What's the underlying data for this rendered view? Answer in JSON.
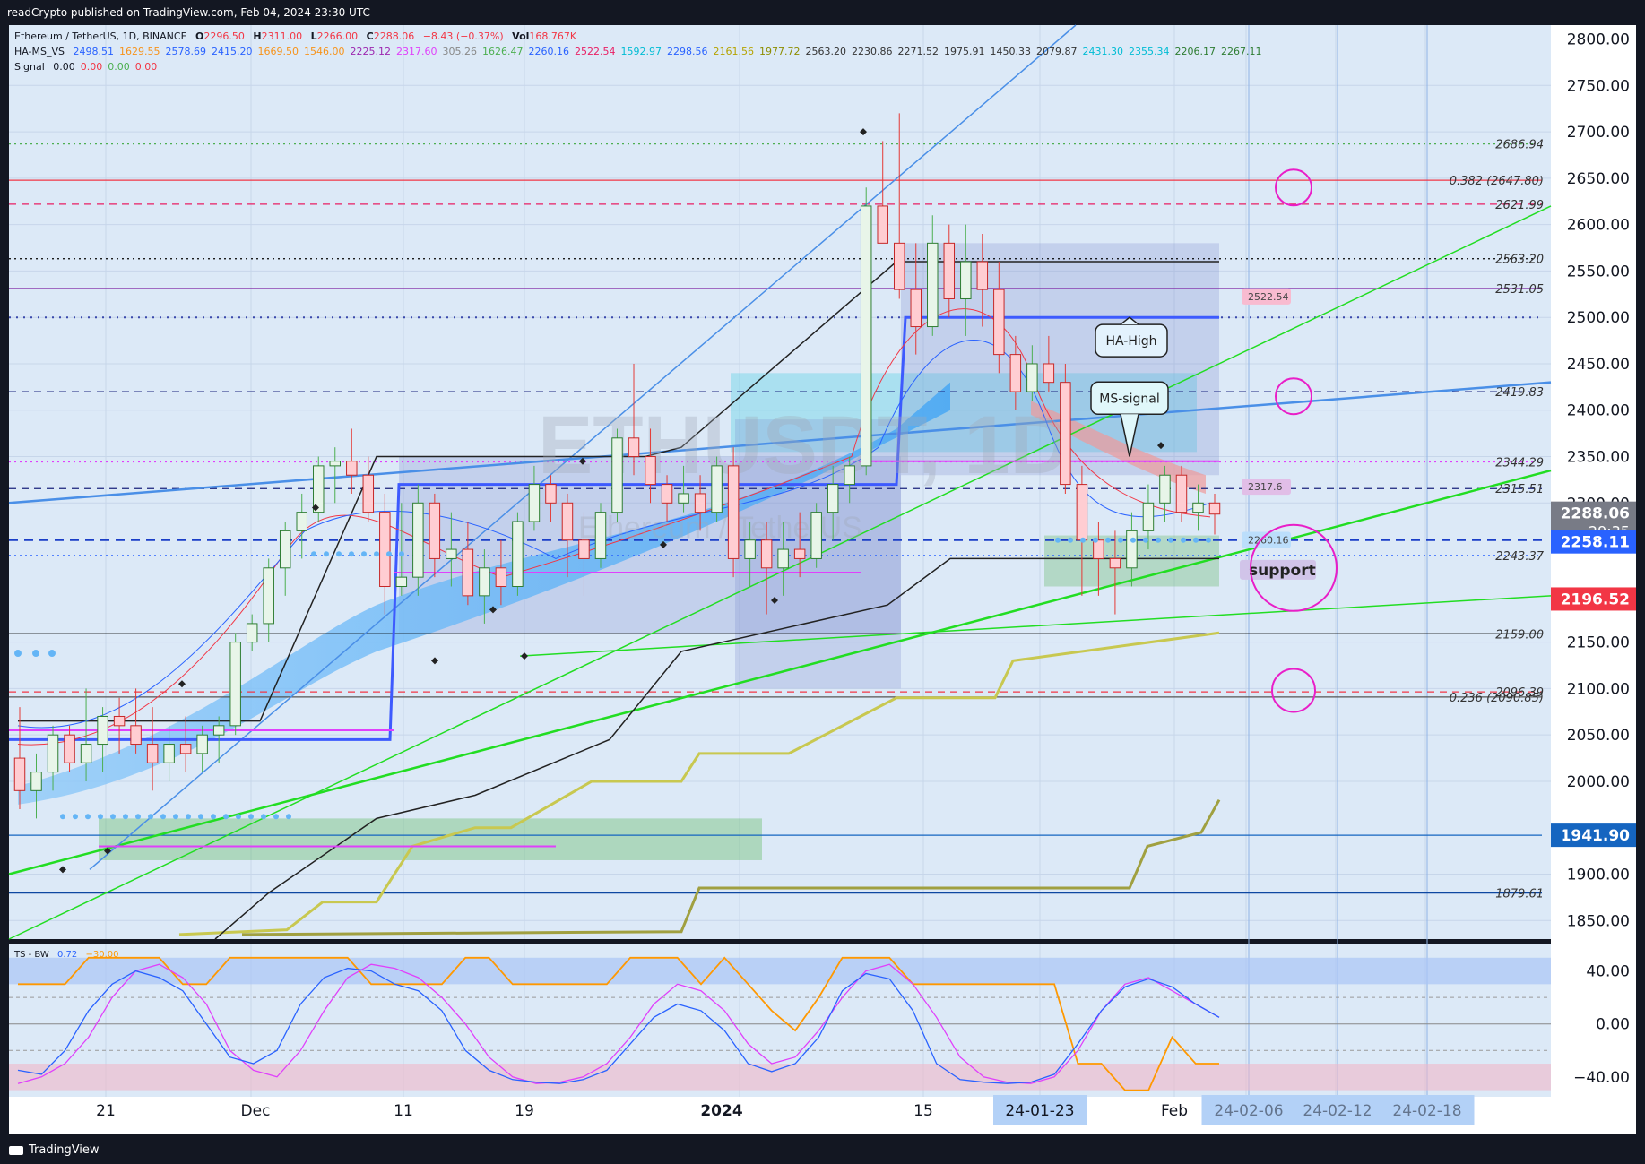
{
  "header": {
    "published": "readCrypto published on TradingView.com, Feb 04, 2024 23:30 UTC"
  },
  "footer": {
    "brand": "TradingView"
  },
  "legend": {
    "symbol_line": {
      "title": "Ethereum / TetherUS, 1D, BINANCE",
      "o_label": "O",
      "o": "2296.50",
      "h_label": "H",
      "h": "2311.00",
      "l_label": "L",
      "l": "2266.00",
      "c_label": "C",
      "c": "2288.06",
      "change": "−8.43 (−0.37%)",
      "vol_label": "Vol",
      "vol": "168.767K"
    },
    "ha_ms": {
      "name": "HA-MS_VS",
      "values": [
        {
          "v": "2498.51",
          "c": "#2962ff"
        },
        {
          "v": "1629.55",
          "c": "#f7931a"
        },
        {
          "v": "2578.69",
          "c": "#2962ff"
        },
        {
          "v": "2415.20",
          "c": "#2962ff"
        },
        {
          "v": "1669.50",
          "c": "#f7931a"
        },
        {
          "v": "1546.00",
          "c": "#f7931a"
        },
        {
          "v": "2225.12",
          "c": "#9c27b0"
        },
        {
          "v": "2317.60",
          "c": "#e040fb"
        },
        {
          "v": "305.26",
          "c": "#888888"
        },
        {
          "v": "1626.47",
          "c": "#4caf50"
        },
        {
          "v": "2260.16",
          "c": "#2962ff"
        },
        {
          "v": "2522.54",
          "c": "#e91e63"
        },
        {
          "v": "1592.97",
          "c": "#00bcd4"
        },
        {
          "v": "2298.56",
          "c": "#2962ff"
        },
        {
          "v": "2161.56",
          "c": "#b5a300"
        },
        {
          "v": "1977.72",
          "c": "#8d8d00"
        },
        {
          "v": "2563.20",
          "c": "#333333"
        },
        {
          "v": "2230.86",
          "c": "#333333"
        },
        {
          "v": "2271.52",
          "c": "#333333"
        },
        {
          "v": "1975.91",
          "c": "#333333"
        },
        {
          "v": "1450.33",
          "c": "#333333"
        },
        {
          "v": "2079.87",
          "c": "#333333"
        },
        {
          "v": "2431.30",
          "c": "#00bcd4"
        },
        {
          "v": "2355.34",
          "c": "#00bcd4"
        },
        {
          "v": "2206.17",
          "c": "#2e7d32"
        },
        {
          "v": "2267.11",
          "c": "#2e7d32"
        }
      ]
    },
    "signal": {
      "name": "Signal",
      "values": [
        "0.00",
        "0.00",
        "0.00",
        "0.00"
      ]
    },
    "tsbw": {
      "name": "TS - BW",
      "v1": "0.72",
      "v2": "−30.00"
    }
  },
  "watermark": {
    "symbol": "ETHUSDT, 1D",
    "name": "Ethereum / TetherUS"
  },
  "price_axis": {
    "min": 1830,
    "max": 2815,
    "ticks": [
      "2800.00",
      "2750.00",
      "2700.00",
      "2650.00",
      "2600.00",
      "2550.00",
      "2500.00",
      "2450.00",
      "2400.00",
      "2350.00",
      "2300.00",
      "2150.00",
      "2100.00",
      "2050.00",
      "2000.00",
      "1900.00",
      "1850.00"
    ],
    "tick_values": [
      2800,
      2750,
      2700,
      2650,
      2600,
      2550,
      2500,
      2450,
      2400,
      2350,
      2300,
      2150,
      2100,
      2050,
      2000,
      1900,
      1850
    ],
    "price_boxes": [
      {
        "label": "2288.06",
        "sub": "29:35",
        "value": 2288.06,
        "bg": "#787b86",
        "fg": "#ffffff"
      },
      {
        "label": "2258.11",
        "value": 2258.11,
        "bg": "#2962ff",
        "fg": "#ffffff"
      },
      {
        "label": "2196.52",
        "value": 2196.52,
        "bg": "#f23645",
        "fg": "#ffffff"
      },
      {
        "label": "1941.90",
        "value": 1941.9,
        "bg": "#1565c0",
        "fg": "#ffffff"
      }
    ]
  },
  "levels": [
    {
      "label": "2686.94",
      "value": 2686.94,
      "color": "#4caf50",
      "style": "dotted"
    },
    {
      "label": "0.382 (2647.80)",
      "value": 2647.8,
      "color": "#f23645",
      "style": "solid"
    },
    {
      "label": "2621.99",
      "value": 2621.99,
      "color": "#e91e63",
      "style": "dashed"
    },
    {
      "label": "2563.20",
      "value": 2563.2,
      "color": "#000000",
      "style": "dotted"
    },
    {
      "label": "2531.05",
      "value": 2531.05,
      "color": "#7b1fa2",
      "style": "solid"
    },
    {
      "label": "2419.83",
      "value": 2419.83,
      "color": "#1a237e",
      "style": "dashed"
    },
    {
      "label": "2344.29",
      "value": 2344.29,
      "color": "#e040fb",
      "style": "dotted"
    },
    {
      "label": "2315.51",
      "value": 2315.51,
      "color": "#1a237e",
      "style": "dashed"
    },
    {
      "label": "2243.37",
      "value": 2243.37,
      "color": "#2962ff",
      "style": "dotted"
    },
    {
      "label": "2159.00",
      "value": 2159.0,
      "color": "#000000",
      "style": "solid"
    },
    {
      "label": "2096.39",
      "value": 2096.39,
      "color": "#f23645",
      "style": "dashed"
    },
    {
      "label": "0.236 (2090.85)",
      "value": 2090.85,
      "color": "#555555",
      "style": "solid"
    },
    {
      "label": "1879.61",
      "value": 1879.61,
      "color": "#0d47a1",
      "style": "solid"
    }
  ],
  "small_tags": [
    {
      "label": "2522.54",
      "value": 2522.54,
      "bg": "#f8bbd0"
    },
    {
      "label": "2317.6",
      "value": 2317.6,
      "bg": "#e1bee7"
    },
    {
      "label": "2260.16",
      "value": 2260.16,
      "bg": "#bbdefb"
    }
  ],
  "annotations": [
    {
      "label": "HA-High"
    },
    {
      "label": "MS-signal"
    },
    {
      "label": "support"
    }
  ],
  "time_axis": {
    "labels": [
      "21",
      "Dec",
      "11",
      "19",
      "2024",
      "15",
      "24-01-23",
      "Feb",
      "24-02-06",
      "24-02-12",
      "24-02-18"
    ],
    "highlighted": [
      "24-01-23",
      "24-02-06",
      "24-02-12",
      "24-02-18"
    ]
  },
  "oscillator": {
    "min": -55,
    "max": 60,
    "ticks": [
      "40.00",
      "0.00",
      "−40.00"
    ],
    "tick_values": [
      40,
      0,
      -40
    ]
  },
  "candles": [
    [
      2025,
      2080,
      1970,
      1990
    ],
    [
      1990,
      2030,
      1960,
      2010
    ],
    [
      2010,
      2060,
      1990,
      2050
    ],
    [
      2050,
      2060,
      2010,
      2020
    ],
    [
      2020,
      2100,
      2000,
      2040
    ],
    [
      2040,
      2080,
      2010,
      2070
    ],
    [
      2070,
      2090,
      2030,
      2060
    ],
    [
      2060,
      2100,
      2030,
      2040
    ],
    [
      2040,
      2080,
      1990,
      2020
    ],
    [
      2020,
      2060,
      2000,
      2040
    ],
    [
      2040,
      2070,
      2010,
      2030
    ],
    [
      2030,
      2060,
      2010,
      2050
    ],
    [
      2050,
      2070,
      2020,
      2060
    ],
    [
      2060,
      2160,
      2050,
      2150
    ],
    [
      2150,
      2180,
      2140,
      2170
    ],
    [
      2170,
      2240,
      2150,
      2230
    ],
    [
      2230,
      2280,
      2200,
      2270
    ],
    [
      2270,
      2310,
      2240,
      2290
    ],
    [
      2290,
      2350,
      2280,
      2340
    ],
    [
      2340,
      2360,
      2300,
      2345
    ],
    [
      2345,
      2380,
      2310,
      2330
    ],
    [
      2330,
      2350,
      2280,
      2290
    ],
    [
      2290,
      2310,
      2180,
      2210
    ],
    [
      2210,
      2300,
      2200,
      2220
    ],
    [
      2220,
      2320,
      2200,
      2300
    ],
    [
      2300,
      2310,
      2220,
      2240
    ],
    [
      2240,
      2290,
      2210,
      2250
    ],
    [
      2250,
      2280,
      2190,
      2200
    ],
    [
      2200,
      2250,
      2170,
      2230
    ],
    [
      2230,
      2260,
      2190,
      2210
    ],
    [
      2210,
      2290,
      2200,
      2280
    ],
    [
      2280,
      2340,
      2270,
      2320
    ],
    [
      2320,
      2330,
      2280,
      2300
    ],
    [
      2300,
      2310,
      2220,
      2260
    ],
    [
      2260,
      2290,
      2200,
      2240
    ],
    [
      2240,
      2300,
      2230,
      2290
    ],
    [
      2290,
      2380,
      2280,
      2370
    ],
    [
      2370,
      2450,
      2330,
      2350
    ],
    [
      2350,
      2380,
      2300,
      2320
    ],
    [
      2320,
      2330,
      2280,
      2300
    ],
    [
      2300,
      2340,
      2290,
      2310
    ],
    [
      2310,
      2330,
      2270,
      2290
    ],
    [
      2290,
      2350,
      2280,
      2340
    ],
    [
      2340,
      2360,
      2220,
      2240
    ],
    [
      2240,
      2280,
      2210,
      2260
    ],
    [
      2260,
      2280,
      2180,
      2230
    ],
    [
      2230,
      2280,
      2200,
      2250
    ],
    [
      2250,
      2290,
      2220,
      2240
    ],
    [
      2240,
      2300,
      2230,
      2290
    ],
    [
      2290,
      2340,
      2260,
      2320
    ],
    [
      2320,
      2350,
      2300,
      2340
    ],
    [
      2340,
      2640,
      2330,
      2620
    ],
    [
      2620,
      2690,
      2580,
      2580
    ],
    [
      2580,
      2720,
      2520,
      2530
    ],
    [
      2530,
      2580,
      2460,
      2490
    ],
    [
      2490,
      2610,
      2480,
      2580
    ],
    [
      2580,
      2600,
      2500,
      2520
    ],
    [
      2520,
      2600,
      2480,
      2560
    ],
    [
      2560,
      2590,
      2490,
      2530
    ],
    [
      2530,
      2560,
      2440,
      2460
    ],
    [
      2460,
      2480,
      2400,
      2420
    ],
    [
      2420,
      2470,
      2410,
      2450
    ],
    [
      2450,
      2480,
      2420,
      2430
    ],
    [
      2430,
      2450,
      2310,
      2320
    ],
    [
      2320,
      2340,
      2200,
      2260
    ],
    [
      2260,
      2280,
      2200,
      2240
    ],
    [
      2240,
      2270,
      2180,
      2230
    ],
    [
      2230,
      2290,
      2210,
      2270
    ],
    [
      2270,
      2320,
      2250,
      2300
    ],
    [
      2300,
      2340,
      2280,
      2330
    ],
    [
      2330,
      2340,
      2280,
      2290
    ],
    [
      2290,
      2320,
      2270,
      2300
    ],
    [
      2300,
      2310,
      2266,
      2288
    ]
  ],
  "oscillator_series": {
    "blue": [
      -35,
      -38,
      -20,
      10,
      30,
      40,
      35,
      25,
      0,
      -25,
      -30,
      -20,
      15,
      35,
      42,
      40,
      30,
      25,
      10,
      -20,
      -35,
      -42,
      -44,
      -45,
      -42,
      -35,
      -15,
      5,
      15,
      10,
      -5,
      -30,
      -36,
      -30,
      -10,
      25,
      38,
      34,
      10,
      -30,
      -42,
      -44,
      -45,
      -44,
      -38,
      -15,
      10,
      28,
      34,
      28,
      15,
      5
    ],
    "pink": [
      -45,
      -40,
      -30,
      -10,
      20,
      40,
      45,
      35,
      15,
      -20,
      -35,
      -40,
      -20,
      10,
      35,
      45,
      42,
      35,
      20,
      0,
      -25,
      -40,
      -45,
      -44,
      -40,
      -30,
      -10,
      15,
      30,
      25,
      10,
      -15,
      -30,
      -25,
      -5,
      20,
      40,
      45,
      30,
      5,
      -25,
      -40,
      -44,
      -45,
      -40,
      -20,
      10,
      30,
      35,
      25,
      15,
      5
    ],
    "orange": [
      30,
      30,
      30,
      50,
      50,
      50,
      50,
      30,
      30,
      50,
      50,
      50,
      50,
      50,
      50,
      30,
      30,
      30,
      30,
      50,
      50,
      30,
      30,
      30,
      30,
      30,
      50,
      50,
      50,
      30,
      50,
      30,
      10,
      -5,
      20,
      50,
      50,
      50,
      30,
      30,
      30,
      30,
      30,
      30,
      30,
      -30,
      -30,
      -50,
      -50,
      -10,
      -30,
      -30
    ]
  }
}
